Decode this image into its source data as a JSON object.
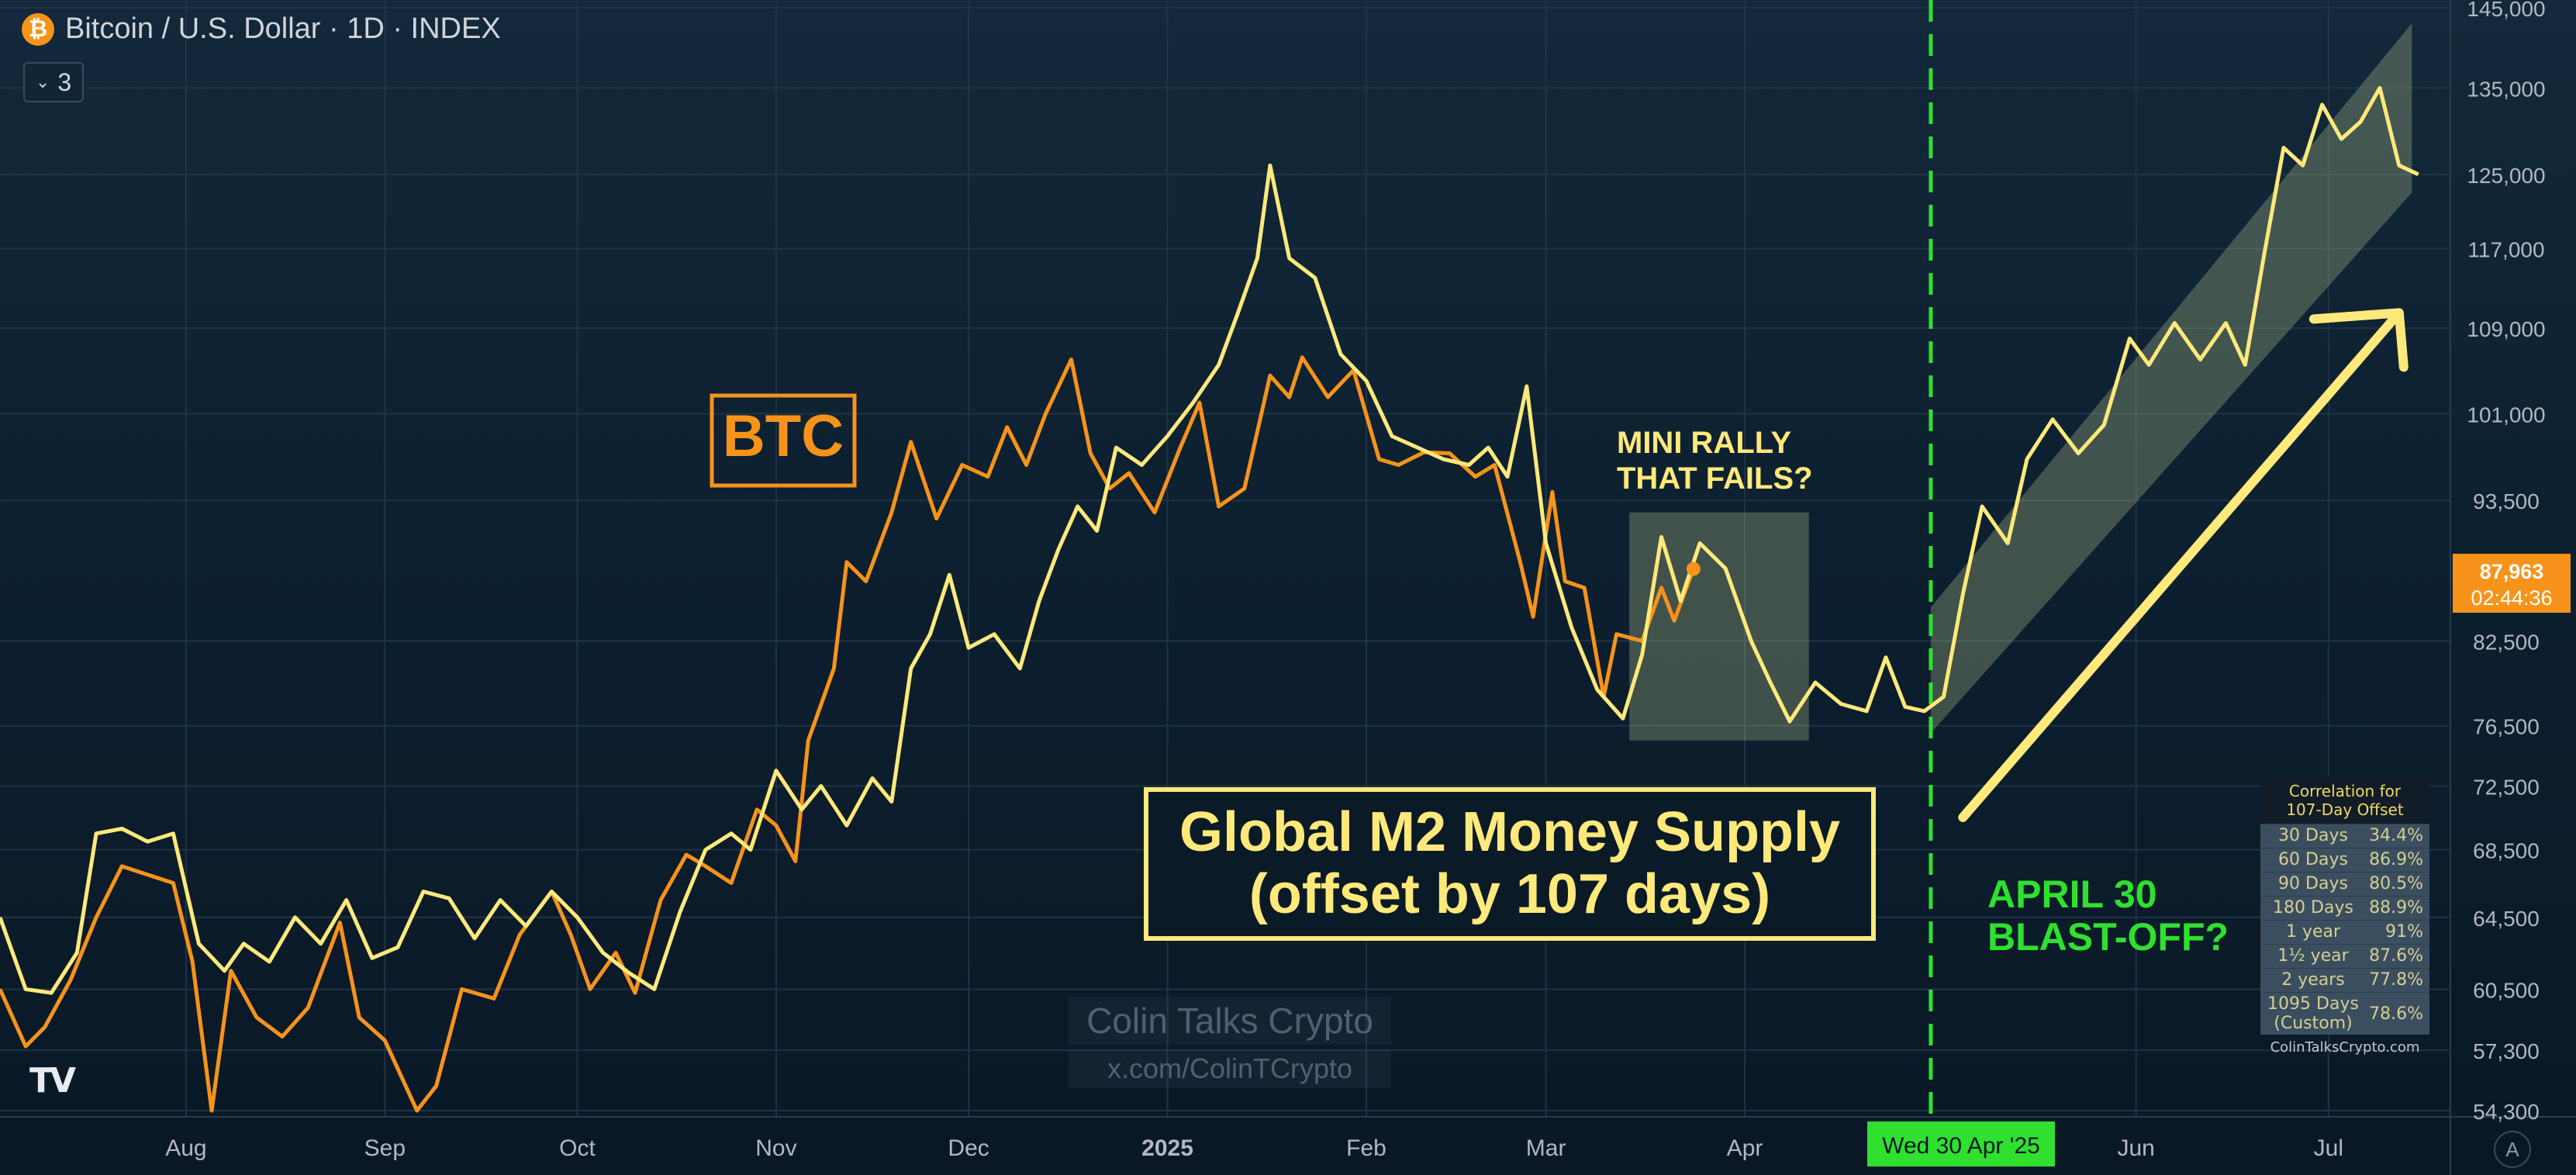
{
  "header": {
    "title": "Bitcoin / U.S. Dollar · 1D · INDEX",
    "logo_icon": "bitcoin-icon",
    "indicator_count": "3"
  },
  "tv_logo": "TV",
  "watermark": {
    "line1": "Colin Talks Crypto",
    "line2": "x.com/ColinTCrypto"
  },
  "price_tag": {
    "price": "87,963",
    "countdown": "02:44:36",
    "color": "#f7931a"
  },
  "date_tag": {
    "label": "Wed 30 Apr '25",
    "color": "#2fe02f"
  },
  "annotations": {
    "btc_label": "BTC",
    "m2_line1": "Global M2 Money Supply",
    "m2_line2": "(offset by 107 days)",
    "mini_rally_line1": "MINI RALLY",
    "mini_rally_line2": "THAT FAILS?",
    "blastoff_line1": "APRIL 30",
    "blastoff_line2": "BLAST-OFF?"
  },
  "correlation_table": {
    "title_line1": "Correlation for",
    "title_line2": "107-Day Offset",
    "rows": [
      {
        "period": "30 Days",
        "value": "34.4%"
      },
      {
        "period": "60 Days",
        "value": "86.9%"
      },
      {
        "period": "90 Days",
        "value": "80.5%"
      },
      {
        "period": "180 Days",
        "value": "88.9%"
      },
      {
        "period": "1 year",
        "value": "91%"
      },
      {
        "period": "1½ year",
        "value": "87.6%"
      },
      {
        "period": "2 years",
        "value": "77.8%"
      },
      {
        "period": "1095 Days",
        "period2": "(Custom)",
        "value": "78.6%"
      }
    ],
    "footer": "ColinTalksCrypto.com"
  },
  "auto_scale_label": "A",
  "chart_data": {
    "type": "line",
    "x_axis": {
      "type": "date",
      "tick_labels": [
        "Aug",
        "Sep",
        "Oct",
        "Nov",
        "Dec",
        "2025",
        "Feb",
        "Mar",
        "Apr",
        "Jun",
        "Jul"
      ],
      "tick_dates": [
        "2024-08-01",
        "2024-09-01",
        "2024-10-01",
        "2024-11-01",
        "2024-12-01",
        "2025-01-01",
        "2025-02-01",
        "2025-03-01",
        "2025-04-01",
        "2025-06-01",
        "2025-07-01"
      ],
      "range": [
        "2024-07-03",
        "2025-07-20"
      ]
    },
    "y_axis": {
      "scale": "log",
      "tick_labels": [
        "145,000",
        "135,000",
        "125,000",
        "117,000",
        "109,000",
        "101,000",
        "93,500",
        "82,500",
        "76,500",
        "72,500",
        "68,500",
        "64,500",
        "60,500",
        "57,300",
        "54,300"
      ],
      "tick_values": [
        145000,
        135000,
        125000,
        117000,
        109000,
        101000,
        93500,
        82500,
        76500,
        72500,
        68500,
        64500,
        60500,
        57300,
        54300
      ],
      "range": [
        54000,
        146000
      ]
    },
    "grid": true,
    "series": [
      {
        "name": "BTC",
        "color": "#f7931a",
        "points": [
          [
            "2024-07-03",
            60500
          ],
          [
            "2024-07-07",
            57500
          ],
          [
            "2024-07-10",
            58500
          ],
          [
            "2024-07-14",
            61000
          ],
          [
            "2024-07-18",
            64500
          ],
          [
            "2024-07-22",
            67500
          ],
          [
            "2024-07-26",
            67000
          ],
          [
            "2024-07-30",
            66500
          ],
          [
            "2024-08-02",
            62000
          ],
          [
            "2024-08-05",
            54300
          ],
          [
            "2024-08-08",
            61500
          ],
          [
            "2024-08-12",
            59000
          ],
          [
            "2024-08-16",
            58000
          ],
          [
            "2024-08-20",
            59500
          ],
          [
            "2024-08-25",
            64200
          ],
          [
            "2024-08-28",
            59000
          ],
          [
            "2024-09-01",
            57800
          ],
          [
            "2024-09-06",
            54300
          ],
          [
            "2024-09-09",
            55500
          ],
          [
            "2024-09-13",
            60500
          ],
          [
            "2024-09-18",
            60000
          ],
          [
            "2024-09-22",
            63500
          ],
          [
            "2024-09-27",
            66000
          ],
          [
            "2024-09-30",
            63500
          ],
          [
            "2024-10-03",
            60500
          ],
          [
            "2024-10-07",
            62500
          ],
          [
            "2024-10-10",
            60300
          ],
          [
            "2024-10-14",
            65500
          ],
          [
            "2024-10-18",
            68200
          ],
          [
            "2024-10-21",
            67500
          ],
          [
            "2024-10-25",
            66500
          ],
          [
            "2024-10-29",
            71000
          ],
          [
            "2024-11-01",
            70000
          ],
          [
            "2024-11-04",
            67800
          ],
          [
            "2024-11-06",
            75500
          ],
          [
            "2024-11-10",
            80500
          ],
          [
            "2024-11-12",
            88500
          ],
          [
            "2024-11-15",
            87000
          ],
          [
            "2024-11-19",
            92500
          ],
          [
            "2024-11-22",
            98500
          ],
          [
            "2024-11-26",
            92000
          ],
          [
            "2024-11-30",
            96500
          ],
          [
            "2024-12-04",
            95500
          ],
          [
            "2024-12-07",
            99800
          ],
          [
            "2024-12-10",
            96500
          ],
          [
            "2024-12-13",
            101000
          ],
          [
            "2024-12-17",
            106000
          ],
          [
            "2024-12-20",
            97500
          ],
          [
            "2024-12-23",
            94500
          ],
          [
            "2024-12-26",
            95800
          ],
          [
            "2024-12-30",
            92500
          ],
          [
            "2025-01-03",
            98000
          ],
          [
            "2025-01-06",
            102000
          ],
          [
            "2025-01-09",
            93000
          ],
          [
            "2025-01-13",
            94500
          ],
          [
            "2025-01-17",
            104500
          ],
          [
            "2025-01-20",
            102500
          ],
          [
            "2025-01-22",
            106200
          ],
          [
            "2025-01-26",
            102500
          ],
          [
            "2025-01-30",
            105000
          ],
          [
            "2025-02-03",
            97000
          ],
          [
            "2025-02-06",
            96500
          ],
          [
            "2025-02-10",
            97600
          ],
          [
            "2025-02-14",
            97500
          ],
          [
            "2025-02-18",
            95500
          ],
          [
            "2025-02-21",
            96500
          ],
          [
            "2025-02-25",
            88500
          ],
          [
            "2025-02-27",
            84300
          ],
          [
            "2025-03-02",
            94200
          ],
          [
            "2025-03-04",
            87000
          ],
          [
            "2025-03-07",
            86500
          ],
          [
            "2025-03-10",
            78500
          ],
          [
            "2025-03-12",
            83000
          ],
          [
            "2025-03-16",
            82500
          ],
          [
            "2025-03-19",
            86500
          ],
          [
            "2025-03-21",
            84000
          ],
          [
            "2025-03-24",
            87963
          ]
        ]
      },
      {
        "name": "Global M2 Money Supply (offset by 107 days)",
        "color": "#ffe97a",
        "points": [
          [
            "2024-07-03",
            64500
          ],
          [
            "2024-07-07",
            60500
          ],
          [
            "2024-07-11",
            60300
          ],
          [
            "2024-07-15",
            62500
          ],
          [
            "2024-07-18",
            69500
          ],
          [
            "2024-07-22",
            69800
          ],
          [
            "2024-07-26",
            69000
          ],
          [
            "2024-07-30",
            69500
          ],
          [
            "2024-08-03",
            63000
          ],
          [
            "2024-08-07",
            61500
          ],
          [
            "2024-08-10",
            63000
          ],
          [
            "2024-08-14",
            62000
          ],
          [
            "2024-08-18",
            64500
          ],
          [
            "2024-08-22",
            63000
          ],
          [
            "2024-08-26",
            65500
          ],
          [
            "2024-08-30",
            62200
          ],
          [
            "2024-09-03",
            62800
          ],
          [
            "2024-09-07",
            66000
          ],
          [
            "2024-09-11",
            65600
          ],
          [
            "2024-09-15",
            63300
          ],
          [
            "2024-09-19",
            65500
          ],
          [
            "2024-09-23",
            64000
          ],
          [
            "2024-09-27",
            66000
          ],
          [
            "2024-10-01",
            64500
          ],
          [
            "2024-10-05",
            62500
          ],
          [
            "2024-10-09",
            61400
          ],
          [
            "2024-10-13",
            60500
          ],
          [
            "2024-10-17",
            64800
          ],
          [
            "2024-10-21",
            68500
          ],
          [
            "2024-10-25",
            69500
          ],
          [
            "2024-10-28",
            68500
          ],
          [
            "2024-11-01",
            73500
          ],
          [
            "2024-11-05",
            71000
          ],
          [
            "2024-11-08",
            72500
          ],
          [
            "2024-11-12",
            70000
          ],
          [
            "2024-11-16",
            73000
          ],
          [
            "2024-11-19",
            71500
          ],
          [
            "2024-11-22",
            80500
          ],
          [
            "2024-11-25",
            83000
          ],
          [
            "2024-11-28",
            87500
          ],
          [
            "2024-12-01",
            82000
          ],
          [
            "2024-12-05",
            83000
          ],
          [
            "2024-12-09",
            80500
          ],
          [
            "2024-12-12",
            85500
          ],
          [
            "2024-12-15",
            89500
          ],
          [
            "2024-12-18",
            93000
          ],
          [
            "2024-12-21",
            91000
          ],
          [
            "2024-12-24",
            98000
          ],
          [
            "2024-12-28",
            96500
          ],
          [
            "2025-01-01",
            99000
          ],
          [
            "2025-01-05",
            102000
          ],
          [
            "2025-01-09",
            105500
          ],
          [
            "2025-01-12",
            110500
          ],
          [
            "2025-01-15",
            116000
          ],
          [
            "2025-01-17",
            126000
          ],
          [
            "2025-01-20",
            116000
          ],
          [
            "2025-01-24",
            114000
          ],
          [
            "2025-01-28",
            106500
          ],
          [
            "2025-02-01",
            104000
          ],
          [
            "2025-02-05",
            99000
          ],
          [
            "2025-02-09",
            98000
          ],
          [
            "2025-02-13",
            97000
          ],
          [
            "2025-02-17",
            96500
          ],
          [
            "2025-02-20",
            98000
          ],
          [
            "2025-02-23",
            95500
          ],
          [
            "2025-02-26",
            103500
          ],
          [
            "2025-03-01",
            90000
          ],
          [
            "2025-03-05",
            83500
          ],
          [
            "2025-03-09",
            79000
          ],
          [
            "2025-03-13",
            77000
          ],
          [
            "2025-03-16",
            81500
          ],
          [
            "2025-03-19",
            90500
          ],
          [
            "2025-03-22",
            85500
          ],
          [
            "2025-03-25",
            90000
          ],
          [
            "2025-03-29",
            88000
          ],
          [
            "2025-04-02",
            82500
          ],
          [
            "2025-04-05",
            79500
          ],
          [
            "2025-04-08",
            76800
          ],
          [
            "2025-04-12",
            79500
          ],
          [
            "2025-04-16",
            78000
          ],
          [
            "2025-04-20",
            77500
          ],
          [
            "2025-04-23",
            81300
          ],
          [
            "2025-04-26",
            77800
          ],
          [
            "2025-04-29",
            77500
          ],
          [
            "2025-05-02",
            78500
          ],
          [
            "2025-05-05",
            86000
          ],
          [
            "2025-05-08",
            93000
          ],
          [
            "2025-05-12",
            90000
          ],
          [
            "2025-05-15",
            97000
          ],
          [
            "2025-05-19",
            100500
          ],
          [
            "2025-05-23",
            97500
          ],
          [
            "2025-05-27",
            100000
          ],
          [
            "2025-05-31",
            108000
          ],
          [
            "2025-06-03",
            105500
          ],
          [
            "2025-06-07",
            109500
          ],
          [
            "2025-06-11",
            106000
          ],
          [
            "2025-06-15",
            109500
          ],
          [
            "2025-06-18",
            105500
          ],
          [
            "2025-06-21",
            116500
          ],
          [
            "2025-06-24",
            128000
          ],
          [
            "2025-06-27",
            126000
          ],
          [
            "2025-06-30",
            133000
          ],
          [
            "2025-07-03",
            129000
          ],
          [
            "2025-07-06",
            131000
          ],
          [
            "2025-07-09",
            135000
          ],
          [
            "2025-07-12",
            126000
          ],
          [
            "2025-07-15",
            125000
          ]
        ]
      }
    ],
    "annotations": {
      "mini_rally_box": {
        "x_range": [
          "2025-03-14",
          "2025-04-11"
        ],
        "y_range": [
          75500,
          92500
        ]
      },
      "projection_channel": {
        "start": "2025-04-30",
        "end": "2025-07-14",
        "upper": [
          85000,
          143000
        ],
        "lower": [
          76000,
          123000
        ]
      },
      "vertical_marker": "2025-04-30",
      "arrow": {
        "from": [
          "2025-05-05",
          70500
        ],
        "to": [
          "2025-07-12",
          110500
        ]
      }
    }
  }
}
